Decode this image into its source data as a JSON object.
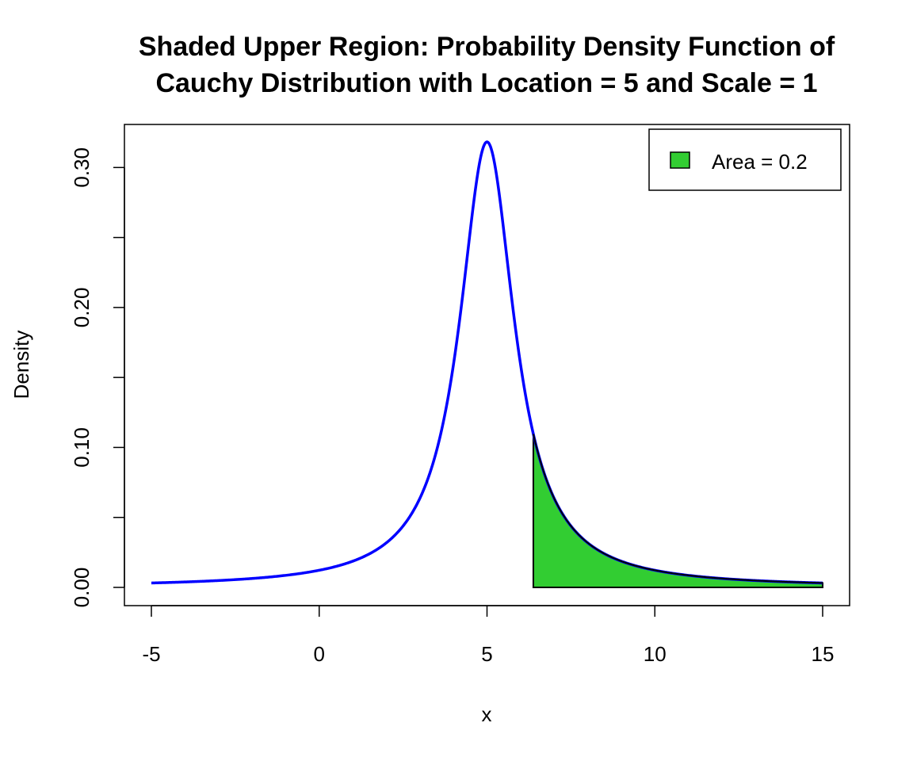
{
  "chart_data": {
    "type": "line",
    "title_line1": "Shaded Upper Region: Probability Density Function of",
    "title_line2": "Cauchy Distribution with Location = 5 and Scale = 1",
    "xlabel": "x",
    "ylabel": "Density",
    "xlim": [
      -5,
      15
    ],
    "ylim": [
      0,
      0.32
    ],
    "x_ticks": [
      -5,
      0,
      5,
      10,
      15
    ],
    "x_tick_labels": [
      "-5",
      "0",
      "5",
      "10",
      "15"
    ],
    "y_ticks": [
      0.0,
      0.05,
      0.1,
      0.15,
      0.2,
      0.25,
      0.3
    ],
    "y_tick_labels": [
      "0.00",
      "",
      "0.10",
      "",
      "0.20",
      "",
      "0.30"
    ],
    "distribution": {
      "name": "cauchy",
      "location": 5,
      "scale": 1
    },
    "shaded_from_x": 6.38,
    "shaded_to_x": 15,
    "legend": {
      "label": "Area = 0.2",
      "position": "top-right"
    },
    "colors": {
      "curve": "#0000ff",
      "fill": "#32cd32",
      "outline": "#000000"
    },
    "grid": false
  }
}
